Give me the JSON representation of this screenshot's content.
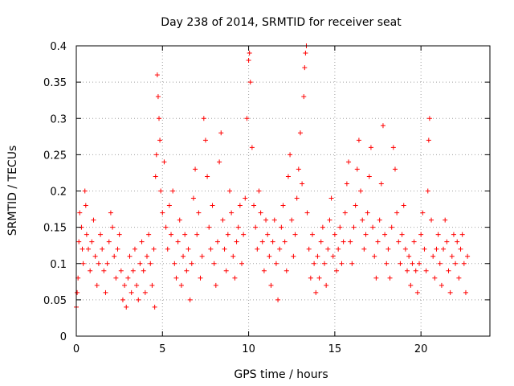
{
  "chart_data": {
    "type": "scatter",
    "title": "Day 238 of 2014, SRMTID for receiver seat",
    "xlabel": "GPS time / hours",
    "ylabel": "SRMTID / TECUs",
    "xlim": [
      0,
      24
    ],
    "ylim": [
      0,
      0.4
    ],
    "xticks": [
      0,
      5,
      10,
      15,
      20
    ],
    "xtick_labels": [
      "0",
      "5",
      "10",
      "15",
      "20"
    ],
    "yticks": [
      0,
      0.05,
      0.1,
      0.15,
      0.2,
      0.25,
      0.3,
      0.35,
      0.4
    ],
    "ytick_labels": [
      "0",
      "0.05",
      "0.1",
      "0.15",
      "0.2",
      "0.25",
      "0.3",
      "0.35",
      "0.4"
    ],
    "grid": true,
    "marker": "plus",
    "color": "#ff0000",
    "series": [
      {
        "name": "SRMTID",
        "points": [
          [
            0.0,
            0.04
          ],
          [
            0.05,
            0.06
          ],
          [
            0.1,
            0.08
          ],
          [
            0.15,
            0.13
          ],
          [
            0.2,
            0.17
          ],
          [
            0.3,
            0.15
          ],
          [
            0.35,
            0.12
          ],
          [
            0.4,
            0.1
          ],
          [
            0.5,
            0.2
          ],
          [
            0.55,
            0.18
          ],
          [
            0.6,
            0.14
          ],
          [
            0.7,
            0.12
          ],
          [
            0.8,
            0.09
          ],
          [
            0.9,
            0.13
          ],
          [
            1.0,
            0.16
          ],
          [
            1.1,
            0.11
          ],
          [
            1.2,
            0.07
          ],
          [
            1.3,
            0.1
          ],
          [
            1.4,
            0.14
          ],
          [
            1.5,
            0.12
          ],
          [
            1.6,
            0.09
          ],
          [
            1.7,
            0.06
          ],
          [
            1.8,
            0.1
          ],
          [
            1.9,
            0.13
          ],
          [
            2.0,
            0.17
          ],
          [
            2.1,
            0.15
          ],
          [
            2.2,
            0.11
          ],
          [
            2.3,
            0.08
          ],
          [
            2.4,
            0.12
          ],
          [
            2.5,
            0.14
          ],
          [
            2.6,
            0.09
          ],
          [
            2.7,
            0.05
          ],
          [
            2.8,
            0.07
          ],
          [
            2.9,
            0.04
          ],
          [
            3.0,
            0.08
          ],
          [
            3.1,
            0.11
          ],
          [
            3.2,
            0.06
          ],
          [
            3.3,
            0.09
          ],
          [
            3.4,
            0.12
          ],
          [
            3.5,
            0.07
          ],
          [
            3.6,
            0.05
          ],
          [
            3.7,
            0.1
          ],
          [
            3.8,
            0.13
          ],
          [
            3.9,
            0.09
          ],
          [
            4.0,
            0.06
          ],
          [
            4.1,
            0.11
          ],
          [
            4.2,
            0.14
          ],
          [
            4.3,
            0.1
          ],
          [
            4.4,
            0.07
          ],
          [
            4.5,
            0.12
          ],
          [
            4.55,
            0.04
          ],
          [
            4.6,
            0.22
          ],
          [
            4.65,
            0.25
          ],
          [
            4.7,
            0.36
          ],
          [
            4.75,
            0.33
          ],
          [
            4.8,
            0.3
          ],
          [
            4.85,
            0.27
          ],
          [
            4.9,
            0.2
          ],
          [
            5.0,
            0.17
          ],
          [
            5.1,
            0.24
          ],
          [
            5.2,
            0.15
          ],
          [
            5.3,
            0.12
          ],
          [
            5.4,
            0.18
          ],
          [
            5.5,
            0.14
          ],
          [
            5.6,
            0.2
          ],
          [
            5.7,
            0.1
          ],
          [
            5.8,
            0.08
          ],
          [
            5.9,
            0.13
          ],
          [
            6.0,
            0.16
          ],
          [
            6.1,
            0.07
          ],
          [
            6.2,
            0.11
          ],
          [
            6.3,
            0.14
          ],
          [
            6.4,
            0.09
          ],
          [
            6.5,
            0.12
          ],
          [
            6.6,
            0.05
          ],
          [
            6.7,
            0.1
          ],
          [
            6.8,
            0.19
          ],
          [
            6.9,
            0.23
          ],
          [
            7.0,
            0.14
          ],
          [
            7.1,
            0.17
          ],
          [
            7.2,
            0.08
          ],
          [
            7.3,
            0.11
          ],
          [
            7.4,
            0.3
          ],
          [
            7.5,
            0.27
          ],
          [
            7.6,
            0.22
          ],
          [
            7.7,
            0.15
          ],
          [
            7.8,
            0.12
          ],
          [
            7.9,
            0.18
          ],
          [
            8.0,
            0.1
          ],
          [
            8.1,
            0.07
          ],
          [
            8.2,
            0.13
          ],
          [
            8.3,
            0.24
          ],
          [
            8.4,
            0.28
          ],
          [
            8.5,
            0.16
          ],
          [
            8.6,
            0.12
          ],
          [
            8.7,
            0.09
          ],
          [
            8.8,
            0.14
          ],
          [
            8.9,
            0.2
          ],
          [
            9.0,
            0.17
          ],
          [
            9.1,
            0.11
          ],
          [
            9.2,
            0.08
          ],
          [
            9.3,
            0.13
          ],
          [
            9.4,
            0.15
          ],
          [
            9.5,
            0.18
          ],
          [
            9.6,
            0.1
          ],
          [
            9.7,
            0.14
          ],
          [
            9.8,
            0.19
          ],
          [
            9.9,
            0.3
          ],
          [
            10.0,
            0.38
          ],
          [
            10.05,
            0.39
          ],
          [
            10.1,
            0.35
          ],
          [
            10.2,
            0.26
          ],
          [
            10.3,
            0.18
          ],
          [
            10.4,
            0.15
          ],
          [
            10.5,
            0.12
          ],
          [
            10.6,
            0.2
          ],
          [
            10.7,
            0.17
          ],
          [
            10.8,
            0.13
          ],
          [
            10.9,
            0.09
          ],
          [
            11.0,
            0.16
          ],
          [
            11.1,
            0.14
          ],
          [
            11.2,
            0.11
          ],
          [
            11.3,
            0.07
          ],
          [
            11.4,
            0.13
          ],
          [
            11.5,
            0.16
          ],
          [
            11.6,
            0.1
          ],
          [
            11.7,
            0.05
          ],
          [
            11.8,
            0.12
          ],
          [
            11.9,
            0.15
          ],
          [
            12.0,
            0.18
          ],
          [
            12.1,
            0.13
          ],
          [
            12.2,
            0.09
          ],
          [
            12.3,
            0.22
          ],
          [
            12.4,
            0.25
          ],
          [
            12.5,
            0.16
          ],
          [
            12.6,
            0.11
          ],
          [
            12.7,
            0.14
          ],
          [
            12.8,
            0.19
          ],
          [
            12.9,
            0.23
          ],
          [
            13.0,
            0.28
          ],
          [
            13.1,
            0.21
          ],
          [
            13.2,
            0.33
          ],
          [
            13.25,
            0.37
          ],
          [
            13.3,
            0.39
          ],
          [
            13.35,
            0.4
          ],
          [
            13.4,
            0.17
          ],
          [
            13.5,
            0.12
          ],
          [
            13.6,
            0.08
          ],
          [
            13.7,
            0.14
          ],
          [
            13.8,
            0.1
          ],
          [
            13.9,
            0.06
          ],
          [
            14.0,
            0.11
          ],
          [
            14.1,
            0.08
          ],
          [
            14.2,
            0.13
          ],
          [
            14.3,
            0.15
          ],
          [
            14.4,
            0.1
          ],
          [
            14.5,
            0.07
          ],
          [
            14.6,
            0.12
          ],
          [
            14.7,
            0.16
          ],
          [
            14.8,
            0.19
          ],
          [
            14.9,
            0.11
          ],
          [
            15.0,
            0.14
          ],
          [
            15.1,
            0.09
          ],
          [
            15.2,
            0.12
          ],
          [
            15.3,
            0.15
          ],
          [
            15.4,
            0.1
          ],
          [
            15.5,
            0.13
          ],
          [
            15.6,
            0.17
          ],
          [
            15.7,
            0.21
          ],
          [
            15.8,
            0.24
          ],
          [
            15.9,
            0.13
          ],
          [
            16.0,
            0.1
          ],
          [
            16.1,
            0.15
          ],
          [
            16.2,
            0.18
          ],
          [
            16.3,
            0.23
          ],
          [
            16.4,
            0.27
          ],
          [
            16.5,
            0.2
          ],
          [
            16.6,
            0.16
          ],
          [
            16.7,
            0.12
          ],
          [
            16.8,
            0.14
          ],
          [
            16.9,
            0.17
          ],
          [
            17.0,
            0.22
          ],
          [
            17.1,
            0.26
          ],
          [
            17.2,
            0.15
          ],
          [
            17.3,
            0.11
          ],
          [
            17.4,
            0.08
          ],
          [
            17.5,
            0.13
          ],
          [
            17.6,
            0.16
          ],
          [
            17.7,
            0.21
          ],
          [
            17.8,
            0.29
          ],
          [
            17.9,
            0.14
          ],
          [
            18.0,
            0.1
          ],
          [
            18.1,
            0.12
          ],
          [
            18.2,
            0.08
          ],
          [
            18.3,
            0.15
          ],
          [
            18.4,
            0.26
          ],
          [
            18.5,
            0.23
          ],
          [
            18.6,
            0.17
          ],
          [
            18.7,
            0.13
          ],
          [
            18.8,
            0.1
          ],
          [
            18.9,
            0.14
          ],
          [
            19.0,
            0.18
          ],
          [
            19.1,
            0.12
          ],
          [
            19.2,
            0.09
          ],
          [
            19.3,
            0.11
          ],
          [
            19.4,
            0.07
          ],
          [
            19.5,
            0.1
          ],
          [
            19.6,
            0.13
          ],
          [
            19.7,
            0.09
          ],
          [
            19.8,
            0.06
          ],
          [
            19.9,
            0.1
          ],
          [
            20.0,
            0.14
          ],
          [
            20.1,
            0.17
          ],
          [
            20.2,
            0.12
          ],
          [
            20.3,
            0.09
          ],
          [
            20.4,
            0.2
          ],
          [
            20.45,
            0.27
          ],
          [
            20.5,
            0.3
          ],
          [
            20.6,
            0.16
          ],
          [
            20.7,
            0.11
          ],
          [
            20.8,
            0.08
          ],
          [
            20.9,
            0.12
          ],
          [
            21.0,
            0.14
          ],
          [
            21.1,
            0.1
          ],
          [
            21.2,
            0.07
          ],
          [
            21.3,
            0.12
          ],
          [
            21.4,
            0.16
          ],
          [
            21.5,
            0.13
          ],
          [
            21.6,
            0.09
          ],
          [
            21.7,
            0.06
          ],
          [
            21.8,
            0.11
          ],
          [
            21.9,
            0.14
          ],
          [
            22.0,
            0.1
          ],
          [
            22.1,
            0.13
          ],
          [
            22.2,
            0.08
          ],
          [
            22.3,
            0.12
          ],
          [
            22.4,
            0.14
          ],
          [
            22.5,
            0.1
          ],
          [
            22.6,
            0.06
          ],
          [
            22.7,
            0.11
          ]
        ]
      }
    ]
  }
}
